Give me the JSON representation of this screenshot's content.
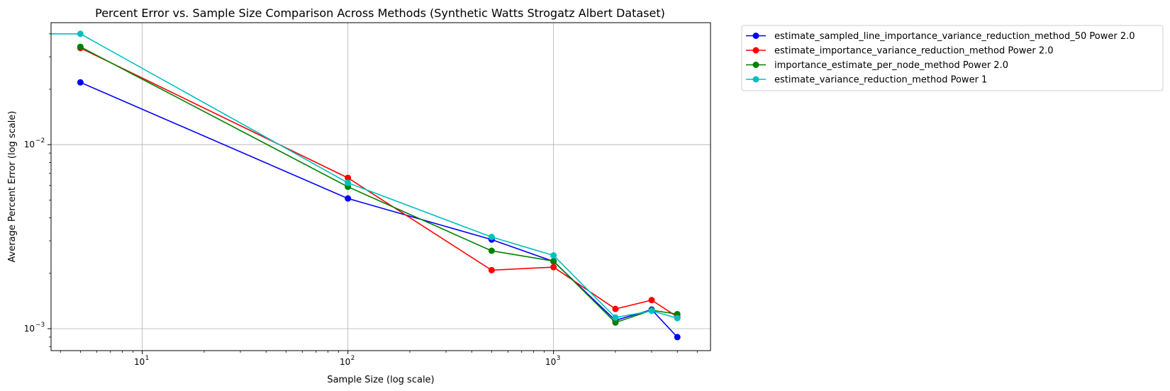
{
  "chart_data": {
    "type": "line",
    "title": "Percent Error vs. Sample Size Comparison Across Methods (Synthetic Watts Strogatz Albert Dataset)",
    "xlabel": "Sample Size (log scale)",
    "ylabel": "Average Percent Error (log scale)",
    "xscale": "log",
    "yscale": "log",
    "xlim": [
      3.6,
      5800
    ],
    "ylim": [
      0.00076,
      0.046
    ],
    "grid": true,
    "legend_position": "outside-top-right",
    "x_ticks": [
      {
        "value": 10,
        "base": "10",
        "exp": "1"
      },
      {
        "value": 100,
        "base": "10",
        "exp": "2"
      },
      {
        "value": 1000,
        "base": "10",
        "exp": "3"
      }
    ],
    "y_ticks": [
      {
        "value": 0.01,
        "base": "10",
        "exp": "−2"
      },
      {
        "value": 0.001,
        "base": "10",
        "exp": "−3"
      }
    ],
    "series": [
      {
        "name": "estimate_sampled_line_importance_variance_reduction_method_50 Power 2.0",
        "color": "#0000ff",
        "x": [
          5,
          100,
          500,
          1000,
          2000,
          3000,
          4000
        ],
        "y": [
          0.0218,
          0.0051,
          0.00305,
          0.00232,
          0.00111,
          0.00127,
          0.0009
        ]
      },
      {
        "name": "estimate_importance_variance_reduction_method Power 2.0",
        "color": "#ff0000",
        "x": [
          5,
          100,
          500,
          1000,
          2000,
          3000,
          4000
        ],
        "y": [
          0.0335,
          0.0066,
          0.00208,
          0.00216,
          0.00128,
          0.00143,
          0.00116
        ]
      },
      {
        "name": "importance_estimate_per_node_method Power 2.0",
        "color": "#008000",
        "x": [
          5,
          100,
          500,
          1000,
          2000,
          3000,
          4000
        ],
        "y": [
          0.034,
          0.0059,
          0.00265,
          0.00233,
          0.00108,
          0.00126,
          0.0012
        ]
      },
      {
        "name": "estimate_variance_reduction_method Power 1",
        "color": "#00bfbf",
        "x": [
          3.6,
          5,
          100,
          500,
          1000,
          2000,
          3000,
          4000
        ],
        "y": [
          0.04,
          0.04,
          0.0062,
          0.00315,
          0.0025,
          0.00115,
          0.00125,
          0.00114
        ],
        "marker_start": 1
      }
    ]
  }
}
